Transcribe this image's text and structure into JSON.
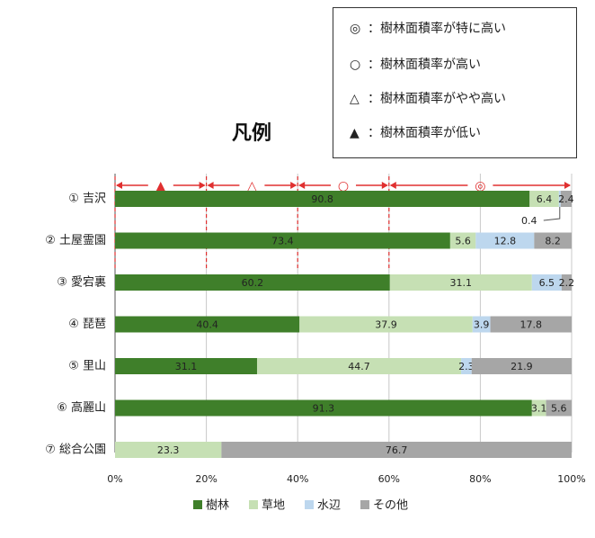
{
  "legend_panel": {
    "title": "凡例",
    "entries": [
      {
        "symbol": "◎",
        "text": "：樹林面積率が特に高い"
      },
      {
        "symbol": "○",
        "text": "：樹林面積率が高い"
      },
      {
        "symbol": "△",
        "text": "：樹林面積率がやや高い"
      },
      {
        "symbol": "▲",
        "text": "：樹林面積率が低い"
      }
    ]
  },
  "chart_data": {
    "type": "bar",
    "orientation": "horizontal",
    "stacked": true,
    "categories": [
      "① 吉沢",
      "② 土屋霊園",
      "③ 愛宕裏",
      "④ 琵琶",
      "⑤ 里山",
      "⑥ 高麗山",
      "⑦ 総合公園"
    ],
    "series": [
      {
        "name": "樹林",
        "color": "#3f7f2a",
        "values": [
          90.8,
          73.4,
          60.2,
          40.4,
          31.1,
          91.3,
          0
        ]
      },
      {
        "name": "草地",
        "color": "#c6e0b4",
        "values": [
          6.4,
          5.6,
          31.1,
          37.9,
          44.7,
          3.1,
          23.3
        ]
      },
      {
        "name": "水辺",
        "color": "#bdd7ee",
        "values": [
          0.4,
          12.8,
          6.5,
          3.9,
          2.3,
          0,
          0
        ]
      },
      {
        "name": "その他",
        "color": "#a6a6a6",
        "values": [
          2.4,
          8.2,
          2.2,
          17.8,
          21.9,
          5.6,
          76.7
        ]
      }
    ],
    "data_labels": [
      [
        "90.8",
        "6.4",
        "",
        "2.4"
      ],
      [
        "73.4",
        "5.6",
        "12.8",
        "8.2"
      ],
      [
        "60.2",
        "31.1",
        "6.5",
        "2.2"
      ],
      [
        "40.4",
        "37.9",
        "3.9",
        "17.8"
      ],
      [
        "31.1",
        "44.7",
        "2.3",
        "21.9"
      ],
      [
        "91.3",
        "3.1",
        "",
        "5.6"
      ],
      [
        "",
        "23.3",
        "",
        "76.7"
      ]
    ],
    "callout": {
      "category_index": 0,
      "series_index": 2,
      "text": "0.4"
    },
    "x_ticks": [
      "0%",
      "20%",
      "40%",
      "60%",
      "80%",
      "100%"
    ],
    "xlim": [
      0,
      100
    ],
    "grid": "vertical dashed at 20% intervals",
    "legend": [
      "樹林",
      "草地",
      "水辺",
      "その他"
    ],
    "legend_position": "bottom",
    "ranges": [
      {
        "from": 0,
        "to": 20,
        "symbol": "▲"
      },
      {
        "from": 20,
        "to": 40,
        "symbol": "△"
      },
      {
        "from": 40,
        "to": 60,
        "symbol": "○"
      },
      {
        "from": 60,
        "to": 100,
        "symbol": "◎"
      }
    ],
    "range_color": "#e03030"
  }
}
